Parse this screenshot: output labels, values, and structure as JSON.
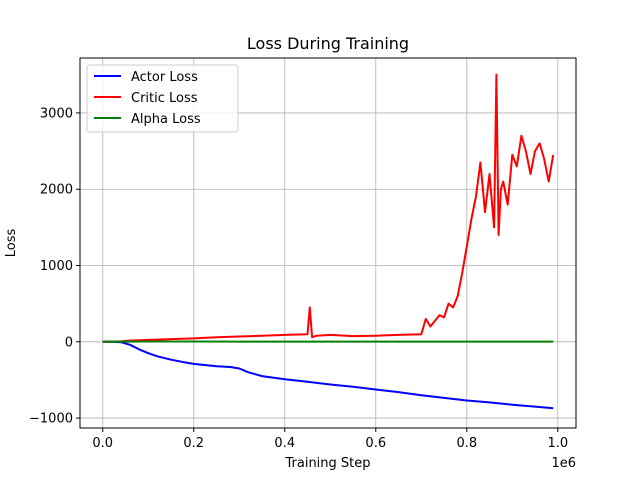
{
  "chart_data": {
    "type": "line",
    "title": "Loss During Training",
    "xlabel": "Training Step",
    "ylabel": "Loss",
    "x_offset_label": "1e6",
    "xlim": [
      -0.05,
      1.04
    ],
    "ylim": [
      -1130,
      3720
    ],
    "x_ticks": [
      0.0,
      0.2,
      0.4,
      0.6,
      0.8,
      1.0
    ],
    "x_tick_labels": [
      "0.0",
      "0.2",
      "0.4",
      "0.6",
      "0.8",
      "1.0"
    ],
    "y_ticks": [
      -1000,
      0,
      1000,
      2000,
      3000
    ],
    "y_tick_labels": [
      "−1000",
      "0",
      "1000",
      "2000",
      "3000"
    ],
    "grid": true,
    "legend_position": "top-left",
    "series": [
      {
        "name": "Actor Loss",
        "color": "#0000ff",
        "x": [
          0.0,
          0.02,
          0.04,
          0.06,
          0.08,
          0.1,
          0.12,
          0.15,
          0.18,
          0.2,
          0.25,
          0.28,
          0.3,
          0.32,
          0.35,
          0.4,
          0.45,
          0.5,
          0.55,
          0.6,
          0.65,
          0.7,
          0.75,
          0.8,
          0.85,
          0.9,
          0.95,
          0.99
        ],
        "y": [
          0,
          0,
          -5,
          -40,
          -100,
          -150,
          -190,
          -235,
          -270,
          -290,
          -320,
          -330,
          -350,
          -400,
          -450,
          -490,
          -525,
          -560,
          -590,
          -625,
          -660,
          -700,
          -735,
          -770,
          -795,
          -825,
          -850,
          -870
        ]
      },
      {
        "name": "Critic Loss",
        "color": "#ff0000",
        "x": [
          0.0,
          0.04,
          0.06,
          0.1,
          0.15,
          0.2,
          0.25,
          0.3,
          0.35,
          0.4,
          0.45,
          0.455,
          0.46,
          0.47,
          0.5,
          0.55,
          0.6,
          0.65,
          0.7,
          0.71,
          0.72,
          0.74,
          0.75,
          0.76,
          0.77,
          0.78,
          0.79,
          0.8,
          0.81,
          0.82,
          0.83,
          0.84,
          0.85,
          0.86,
          0.865,
          0.87,
          0.875,
          0.88,
          0.89,
          0.9,
          0.91,
          0.92,
          0.93,
          0.94,
          0.95,
          0.96,
          0.97,
          0.98,
          0.99
        ],
        "y": [
          0,
          5,
          15,
          25,
          35,
          45,
          60,
          70,
          80,
          90,
          100,
          450,
          60,
          80,
          90,
          75,
          80,
          90,
          100,
          300,
          200,
          350,
          320,
          500,
          450,
          600,
          900,
          1250,
          1600,
          1900,
          2350,
          1700,
          2200,
          1500,
          3500,
          1400,
          2000,
          2100,
          1800,
          2450,
          2300,
          2700,
          2500,
          2200,
          2500,
          2600,
          2400,
          2100,
          2450
        ]
      },
      {
        "name": "Alpha Loss",
        "color": "#008000",
        "x": [
          0.0,
          0.05,
          0.1,
          0.2,
          0.3,
          0.4,
          0.5,
          0.6,
          0.7,
          0.8,
          0.9,
          0.99
        ],
        "y": [
          0,
          2,
          4,
          4,
          3,
          3,
          3,
          3,
          3,
          3,
          3,
          3
        ]
      }
    ]
  }
}
